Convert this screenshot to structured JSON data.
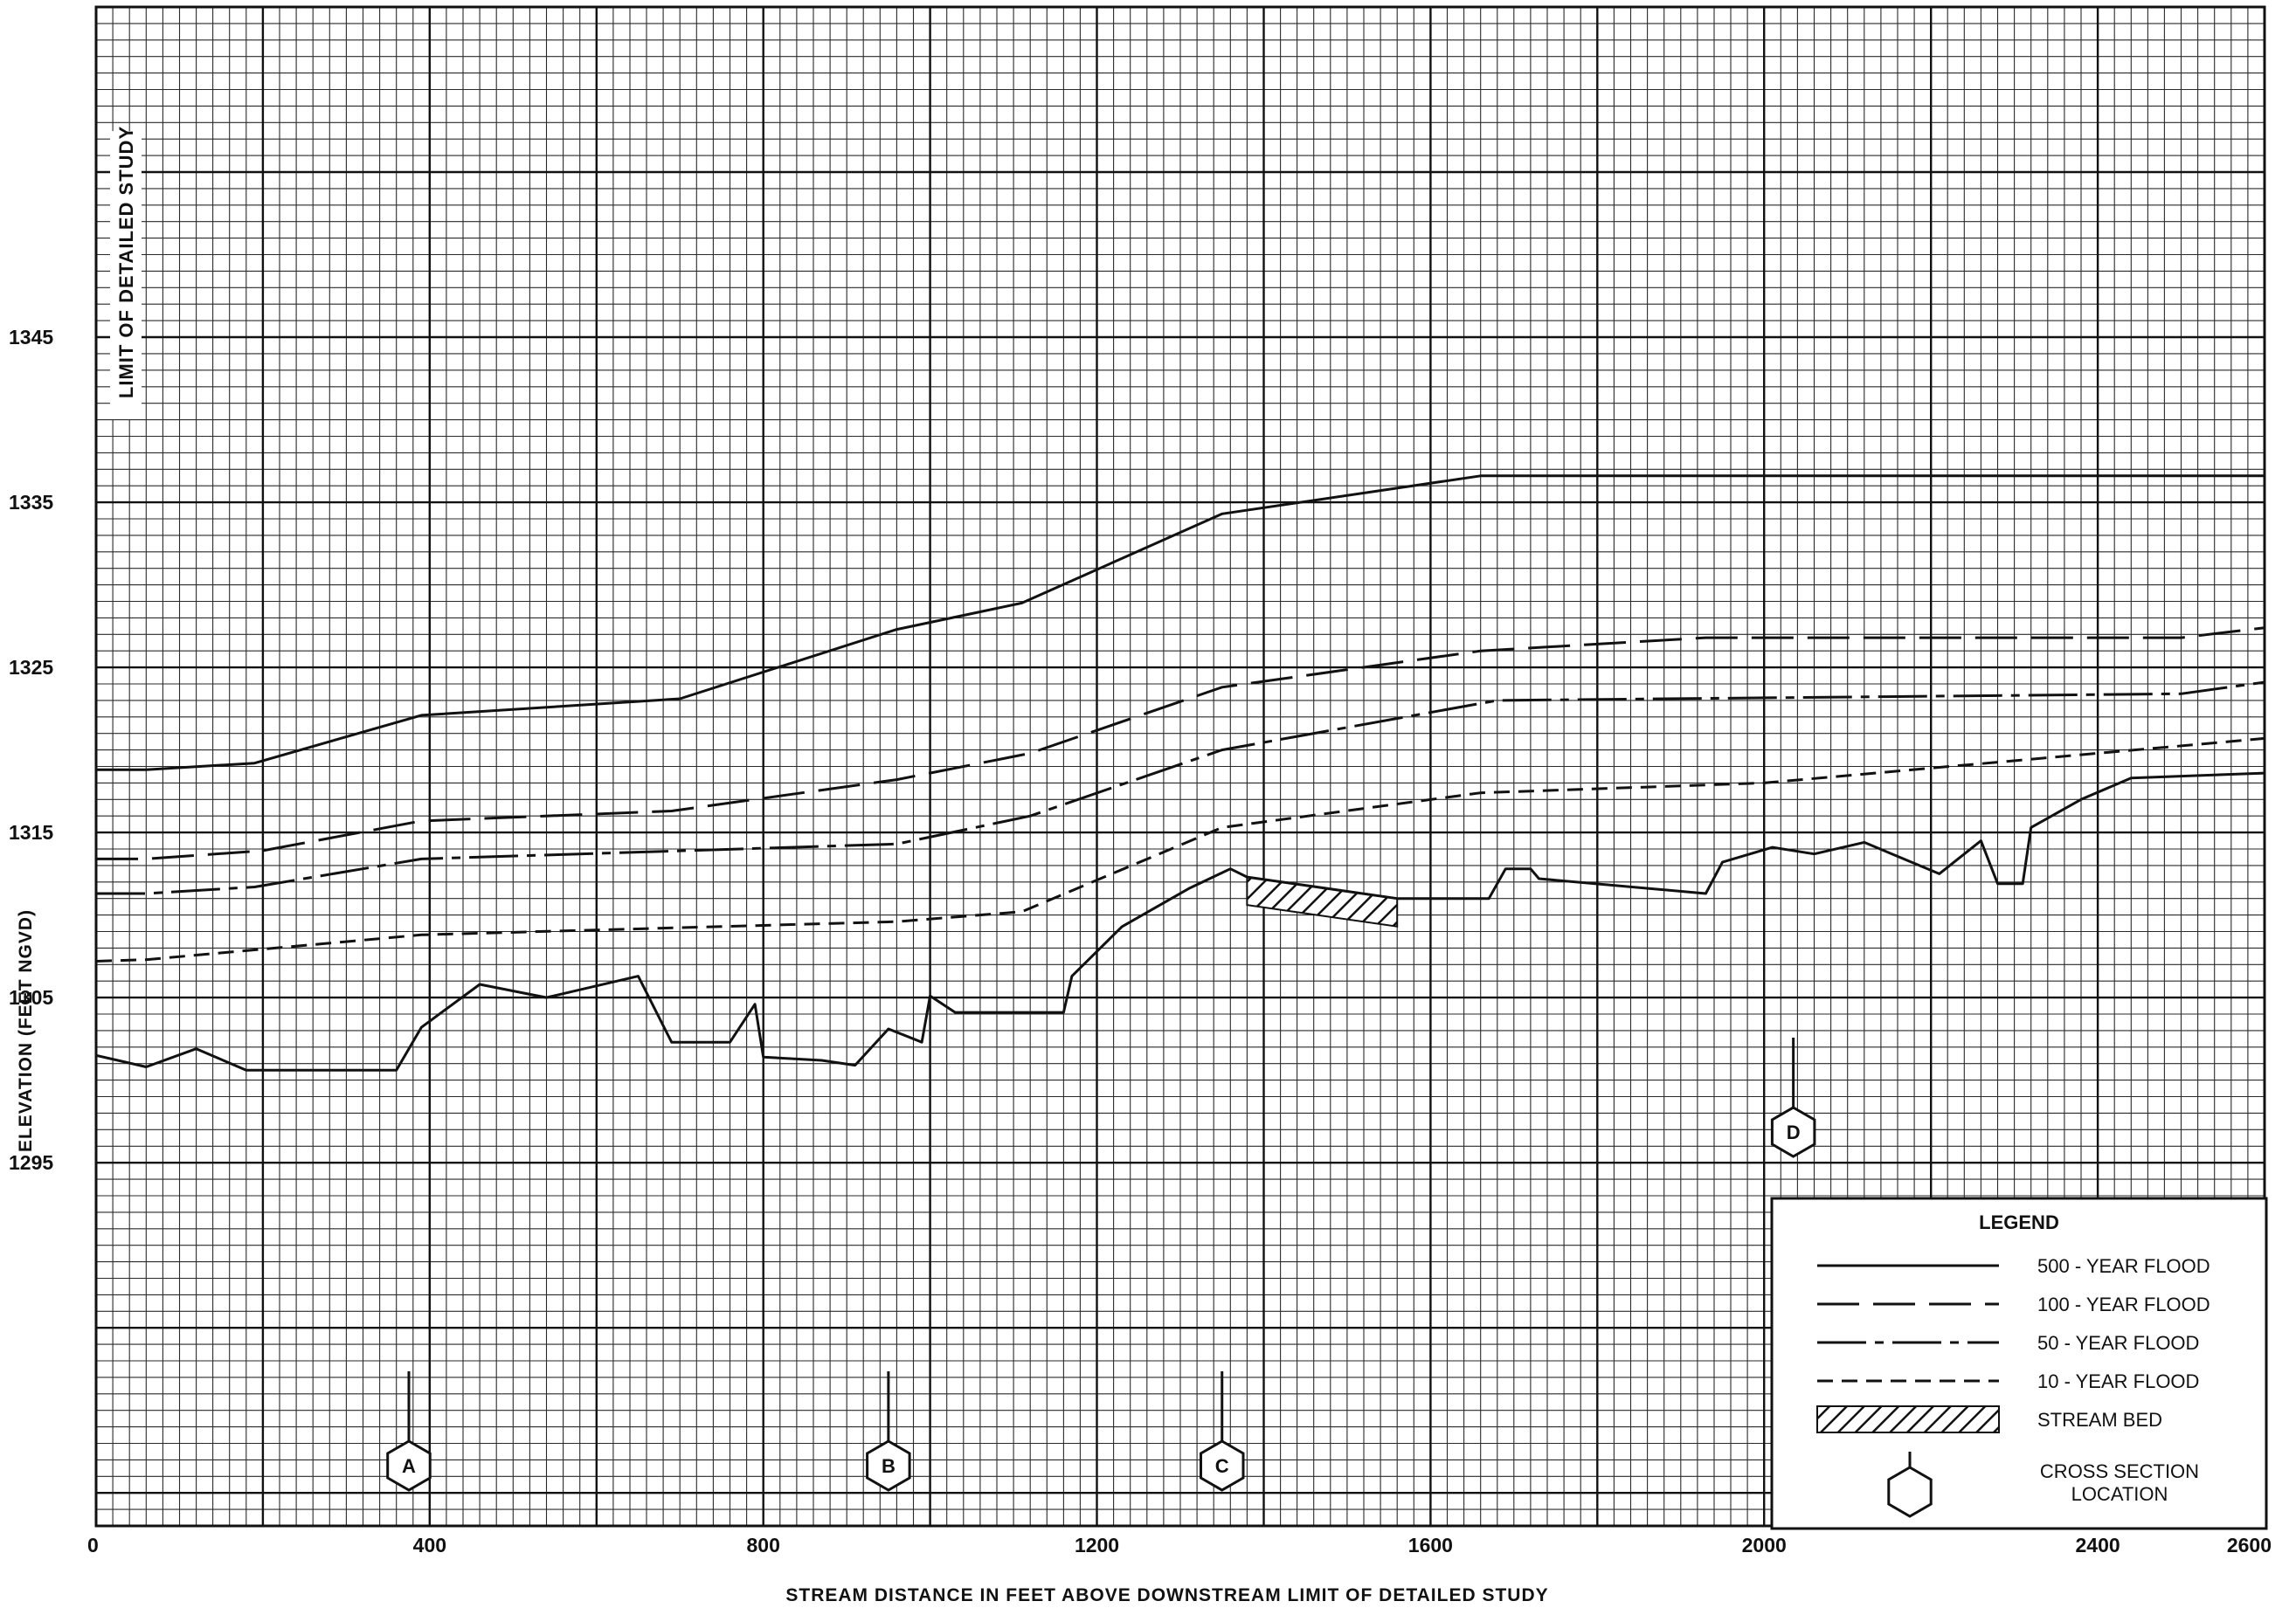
{
  "chart_data": {
    "type": "line",
    "title": "",
    "xlabel": "STREAM DISTANCE IN FEET ABOVE DOWNSTREAM LIMIT OF DETAILED STUDY",
    "ylabel": "ELEVATION (FEET NGVD)",
    "xlim": [
      0,
      2600
    ],
    "ylim": [
      1273,
      1365
    ],
    "x_ticks": [
      0,
      400,
      800,
      1200,
      1600,
      2000,
      2400,
      2600
    ],
    "x_tick_labels": [
      "0",
      "400",
      "800",
      "1200",
      "1600",
      "2000",
      "2400",
      "2600"
    ],
    "y_ticks": [
      1295,
      1305,
      1315,
      1325,
      1335,
      1345
    ],
    "y_tick_labels": [
      "1295",
      "1305",
      "1315",
      "1325",
      "1335",
      "1345"
    ],
    "grid": true,
    "annotation": "LIMIT OF DETAILED STUDY",
    "series": [
      {
        "name": "500 - YEAR FLOOD",
        "style": "solid",
        "x": [
          0,
          60,
          190,
          390,
          700,
          960,
          1110,
          1350,
          1660,
          2600
        ],
        "y": [
          1318.8,
          1318.8,
          1319.2,
          1322.1,
          1323.1,
          1327.3,
          1328.9,
          1334.3,
          1336.6,
          1336.6
        ]
      },
      {
        "name": "100 - YEAR FLOOD",
        "style": "long-dash",
        "x": [
          0,
          60,
          200,
          390,
          690,
          960,
          1120,
          1350,
          1660,
          1930,
          2500,
          2600
        ],
        "y": [
          1313.4,
          1313.4,
          1313.9,
          1315.7,
          1316.3,
          1318.2,
          1319.8,
          1323.8,
          1326.0,
          1326.8,
          1326.8,
          1327.4
        ]
      },
      {
        "name": "50 - YEAR FLOOD",
        "style": "dash-dot",
        "x": [
          0,
          60,
          190,
          390,
          960,
          1120,
          1350,
          1680,
          2500,
          2600
        ],
        "y": [
          1311.3,
          1311.3,
          1311.7,
          1313.4,
          1314.3,
          1316.0,
          1320.0,
          1323.0,
          1323.4,
          1324.1
        ]
      },
      {
        "name": "10 - YEAR FLOOD",
        "style": "short-dash",
        "x": [
          0,
          60,
          390,
          960,
          1110,
          1350,
          1660,
          2000,
          2600
        ],
        "y": [
          1307.2,
          1307.3,
          1308.8,
          1309.6,
          1310.2,
          1315.3,
          1317.4,
          1318.0,
          1320.7
        ]
      },
      {
        "name": "STREAM BED",
        "style": "solid",
        "x": [
          0,
          60,
          120,
          180,
          360,
          390,
          460,
          540,
          650,
          690,
          760,
          790,
          800,
          870,
          910,
          950,
          990,
          1000,
          1030,
          1160,
          1170,
          1230,
          1310,
          1360,
          1380,
          1560,
          1670,
          1690,
          1720,
          1730,
          1930,
          1950,
          2010,
          2060,
          2120,
          2210,
          2260,
          2280,
          2310,
          2320,
          2380,
          2440,
          2600
        ],
        "y": [
          1301.5,
          1300.8,
          1301.9,
          1300.6,
          1300.6,
          1303.2,
          1305.8,
          1305.0,
          1306.3,
          1302.3,
          1302.3,
          1304.6,
          1301.4,
          1301.2,
          1300.9,
          1303.1,
          1302.3,
          1305.1,
          1304.1,
          1304.1,
          1306.3,
          1309.3,
          1311.6,
          1312.8,
          1312.3,
          1311.0,
          1311.0,
          1312.8,
          1312.8,
          1312.2,
          1311.3,
          1313.2,
          1314.1,
          1313.7,
          1314.4,
          1312.5,
          1314.5,
          1311.9,
          1311.9,
          1315.3,
          1317.0,
          1318.3,
          1318.6
        ]
      }
    ],
    "cross_sections": [
      {
        "label": "A",
        "x": 375
      },
      {
        "label": "B",
        "x": 950
      },
      {
        "label": "C",
        "x": 1350
      },
      {
        "label": "D",
        "x": 2035
      }
    ],
    "hatched_bed": {
      "x_start": 1380,
      "x_end": 1575
    }
  },
  "legend": {
    "title": "LEGEND",
    "placement": "bottom-right",
    "items": [
      {
        "label": "500 - YEAR FLOOD",
        "style": "solid"
      },
      {
        "label": "100 - YEAR FLOOD",
        "style": "long-dash"
      },
      {
        "label": "50 - YEAR FLOOD",
        "style": "dash-dot"
      },
      {
        "label": "10 - YEAR FLOOD",
        "style": "short-dash"
      },
      {
        "label": "STREAM BED",
        "style": "hatch"
      }
    ],
    "cross_section_label_line1": "CROSS SECTION",
    "cross_section_label_line2": "LOCATION"
  }
}
